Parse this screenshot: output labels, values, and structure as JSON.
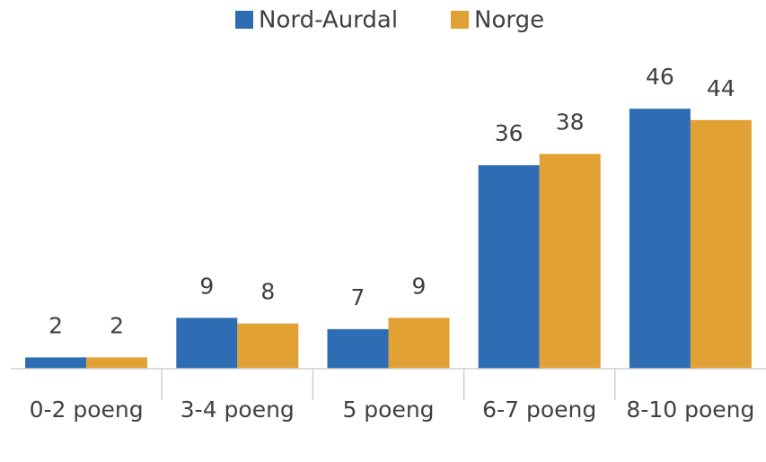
{
  "chart_data": {
    "type": "bar",
    "categories": [
      "0-2 poeng",
      "3-4 poeng",
      "5 poeng",
      "6-7 poeng",
      "8-10 poeng"
    ],
    "series": [
      {
        "name": "Nord-Aurdal",
        "color": "#2e6db4",
        "values": [
          2,
          9,
          7,
          36,
          46
        ]
      },
      {
        "name": "Norge",
        "color": "#e2a134",
        "values": [
          2,
          8,
          9,
          38,
          44
        ]
      }
    ],
    "ylim": [
      0,
      50
    ],
    "legend": "top"
  }
}
